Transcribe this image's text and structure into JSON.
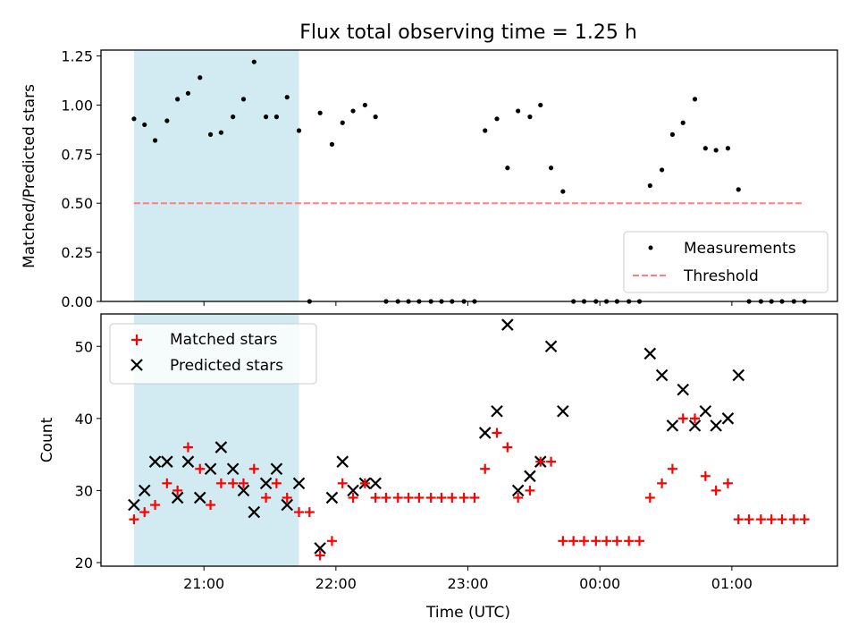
{
  "colors": {
    "measurement": "#000000",
    "threshold": "#ff7f7f",
    "matched": "#ff0000",
    "predicted": "#000000",
    "shade": "#add8e6"
  },
  "chart_data": [
    {
      "type": "scatter",
      "title": "Flux total observing time = 1.25 h",
      "ylabel": "Matched/Predicted stars",
      "xlabel": "",
      "xlim": [
        20.22,
        25.8
      ],
      "ylim": [
        0,
        1.28
      ],
      "yticks": [
        0.0,
        0.25,
        0.5,
        0.75,
        1.0,
        1.25
      ],
      "ytick_labels": [
        "0.00",
        "0.25",
        "0.50",
        "0.75",
        "1.00",
        "1.25"
      ],
      "shaded_interval": [
        20.47,
        21.72
      ],
      "legend": {
        "position": "lower-right",
        "entries": [
          "Measurements",
          "Threshold"
        ]
      },
      "series": [
        {
          "name": "Measurements",
          "x": [
            20.47,
            20.55,
            20.63,
            20.72,
            20.8,
            20.88,
            20.97,
            21.05,
            21.13,
            21.22,
            21.3,
            21.38,
            21.47,
            21.55,
            21.63,
            21.72,
            21.8,
            21.88,
            21.97,
            22.05,
            22.13,
            22.22,
            22.3,
            22.38,
            22.47,
            22.55,
            22.63,
            22.72,
            22.8,
            22.88,
            22.97,
            23.05,
            23.13,
            23.22,
            23.3,
            23.38,
            23.47,
            23.55,
            23.63,
            23.72,
            23.8,
            23.88,
            23.97,
            24.05,
            24.13,
            24.22,
            24.3,
            24.38,
            24.47,
            24.55,
            24.63,
            24.72,
            24.8,
            24.88,
            24.97,
            25.05,
            25.13,
            25.22,
            25.3,
            25.38,
            25.47,
            25.55
          ],
          "y": [
            0.93,
            0.9,
            0.82,
            0.92,
            1.03,
            1.06,
            1.14,
            0.85,
            0.86,
            0.94,
            1.03,
            1.22,
            0.94,
            0.94,
            1.04,
            0.87,
            0.0,
            0.96,
            0.8,
            0.91,
            0.97,
            1.0,
            0.94,
            0.0,
            0.0,
            0.0,
            0.0,
            0.0,
            0.0,
            0.0,
            0.0,
            0.0,
            0.87,
            0.93,
            0.68,
            0.97,
            0.94,
            1.0,
            0.68,
            0.56,
            0.0,
            0.0,
            0.0,
            0.0,
            0.0,
            0.0,
            0.0,
            0.59,
            0.67,
            0.85,
            0.91,
            1.03,
            0.78,
            0.77,
            0.78,
            0.57,
            0.0,
            0.0,
            0.0,
            0.0,
            0.0,
            0.0
          ]
        },
        {
          "name": "Threshold",
          "x": [
            20.47,
            25.55
          ],
          "y": [
            0.5,
            0.5
          ]
        }
      ]
    },
    {
      "type": "scatter",
      "title": "",
      "xlabel": "Time (UTC)",
      "ylabel": "Count",
      "xlim": [
        20.22,
        25.8
      ],
      "ylim": [
        19.5,
        54.5
      ],
      "xticks": [
        21,
        22,
        23,
        24,
        25
      ],
      "xtick_labels": [
        "21:00",
        "22:00",
        "23:00",
        "00:00",
        "01:00"
      ],
      "yticks": [
        20,
        30,
        40,
        50
      ],
      "ytick_labels": [
        "20",
        "30",
        "40",
        "50"
      ],
      "shaded_interval": [
        20.47,
        21.72
      ],
      "legend": {
        "position": "upper-left",
        "entries": [
          "Matched stars",
          "Predicted stars"
        ]
      },
      "series": [
        {
          "name": "Matched stars",
          "x": [
            20.47,
            20.55,
            20.63,
            20.72,
            20.8,
            20.88,
            20.97,
            21.05,
            21.13,
            21.22,
            21.3,
            21.38,
            21.47,
            21.55,
            21.63,
            21.72,
            21.8,
            21.88,
            21.97,
            22.05,
            22.13,
            22.22,
            22.3,
            22.38,
            22.47,
            22.55,
            22.63,
            22.72,
            22.8,
            22.88,
            22.97,
            23.05,
            23.13,
            23.22,
            23.3,
            23.38,
            23.47,
            23.55,
            23.63,
            23.72,
            23.8,
            23.88,
            23.97,
            24.05,
            24.13,
            24.22,
            24.3,
            24.38,
            24.47,
            24.55,
            24.63,
            24.72,
            24.8,
            24.88,
            24.97,
            25.05,
            25.13,
            25.22,
            25.3,
            25.38,
            25.47,
            25.55
          ],
          "y": [
            26,
            27,
            28,
            31,
            30,
            36,
            33,
            28,
            31,
            31,
            31,
            33,
            29,
            31,
            29,
            27,
            27,
            21,
            23,
            31,
            29,
            31,
            29,
            29,
            29,
            29,
            29,
            29,
            29,
            29,
            29,
            29,
            33,
            38,
            36,
            29,
            30,
            34,
            34,
            23,
            23,
            23,
            23,
            23,
            23,
            23,
            23,
            29,
            31,
            33,
            40,
            40,
            32,
            30,
            31,
            26,
            26,
            26,
            26,
            26,
            26,
            26
          ]
        },
        {
          "name": "Predicted stars",
          "x": [
            20.47,
            20.55,
            20.63,
            20.72,
            20.8,
            20.88,
            20.97,
            21.05,
            21.13,
            21.22,
            21.3,
            21.38,
            21.47,
            21.55,
            21.63,
            21.72,
            21.88,
            21.97,
            22.05,
            22.13,
            22.22,
            22.3,
            23.13,
            23.22,
            23.3,
            23.38,
            23.47,
            23.55,
            23.63,
            23.72,
            24.38,
            24.47,
            24.55,
            24.63,
            24.72,
            24.8,
            24.88,
            24.97,
            25.05
          ],
          "y": [
            28,
            30,
            34,
            34,
            29,
            34,
            29,
            33,
            36,
            33,
            30,
            27,
            31,
            33,
            28,
            31,
            22,
            29,
            34,
            30,
            31,
            31,
            38,
            41,
            53,
            30,
            32,
            34,
            50,
            41,
            49,
            46,
            39,
            44,
            39,
            41,
            39,
            40,
            46
          ]
        }
      ]
    }
  ]
}
